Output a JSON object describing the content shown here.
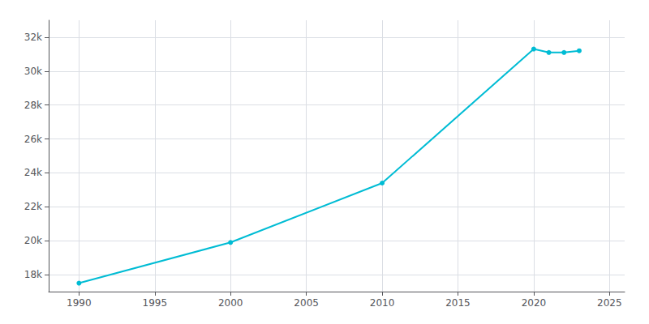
{
  "chart_data": {
    "type": "line",
    "x": [
      1990,
      2000,
      2010,
      2020,
      2021,
      2022,
      2023
    ],
    "values": [
      17500,
      19900,
      23400,
      31300,
      31100,
      31100,
      31200
    ],
    "color": "#00bcd4",
    "marker": "circle",
    "xlim": [
      1988,
      2026
    ],
    "xticks": [
      1990,
      1995,
      2000,
      2005,
      2010,
      2015,
      2020,
      2025
    ],
    "ylim": [
      17000,
      33000
    ],
    "yticks": [
      {
        "value": 18000,
        "label": "18k"
      },
      {
        "value": 20000,
        "label": "20k"
      },
      {
        "value": 22000,
        "label": "22k"
      },
      {
        "value": 24000,
        "label": "24k"
      },
      {
        "value": 26000,
        "label": "26k"
      },
      {
        "value": 28000,
        "label": "28k"
      },
      {
        "value": 30000,
        "label": "30k"
      },
      {
        "value": 32000,
        "label": "32k"
      }
    ],
    "grid": true
  }
}
